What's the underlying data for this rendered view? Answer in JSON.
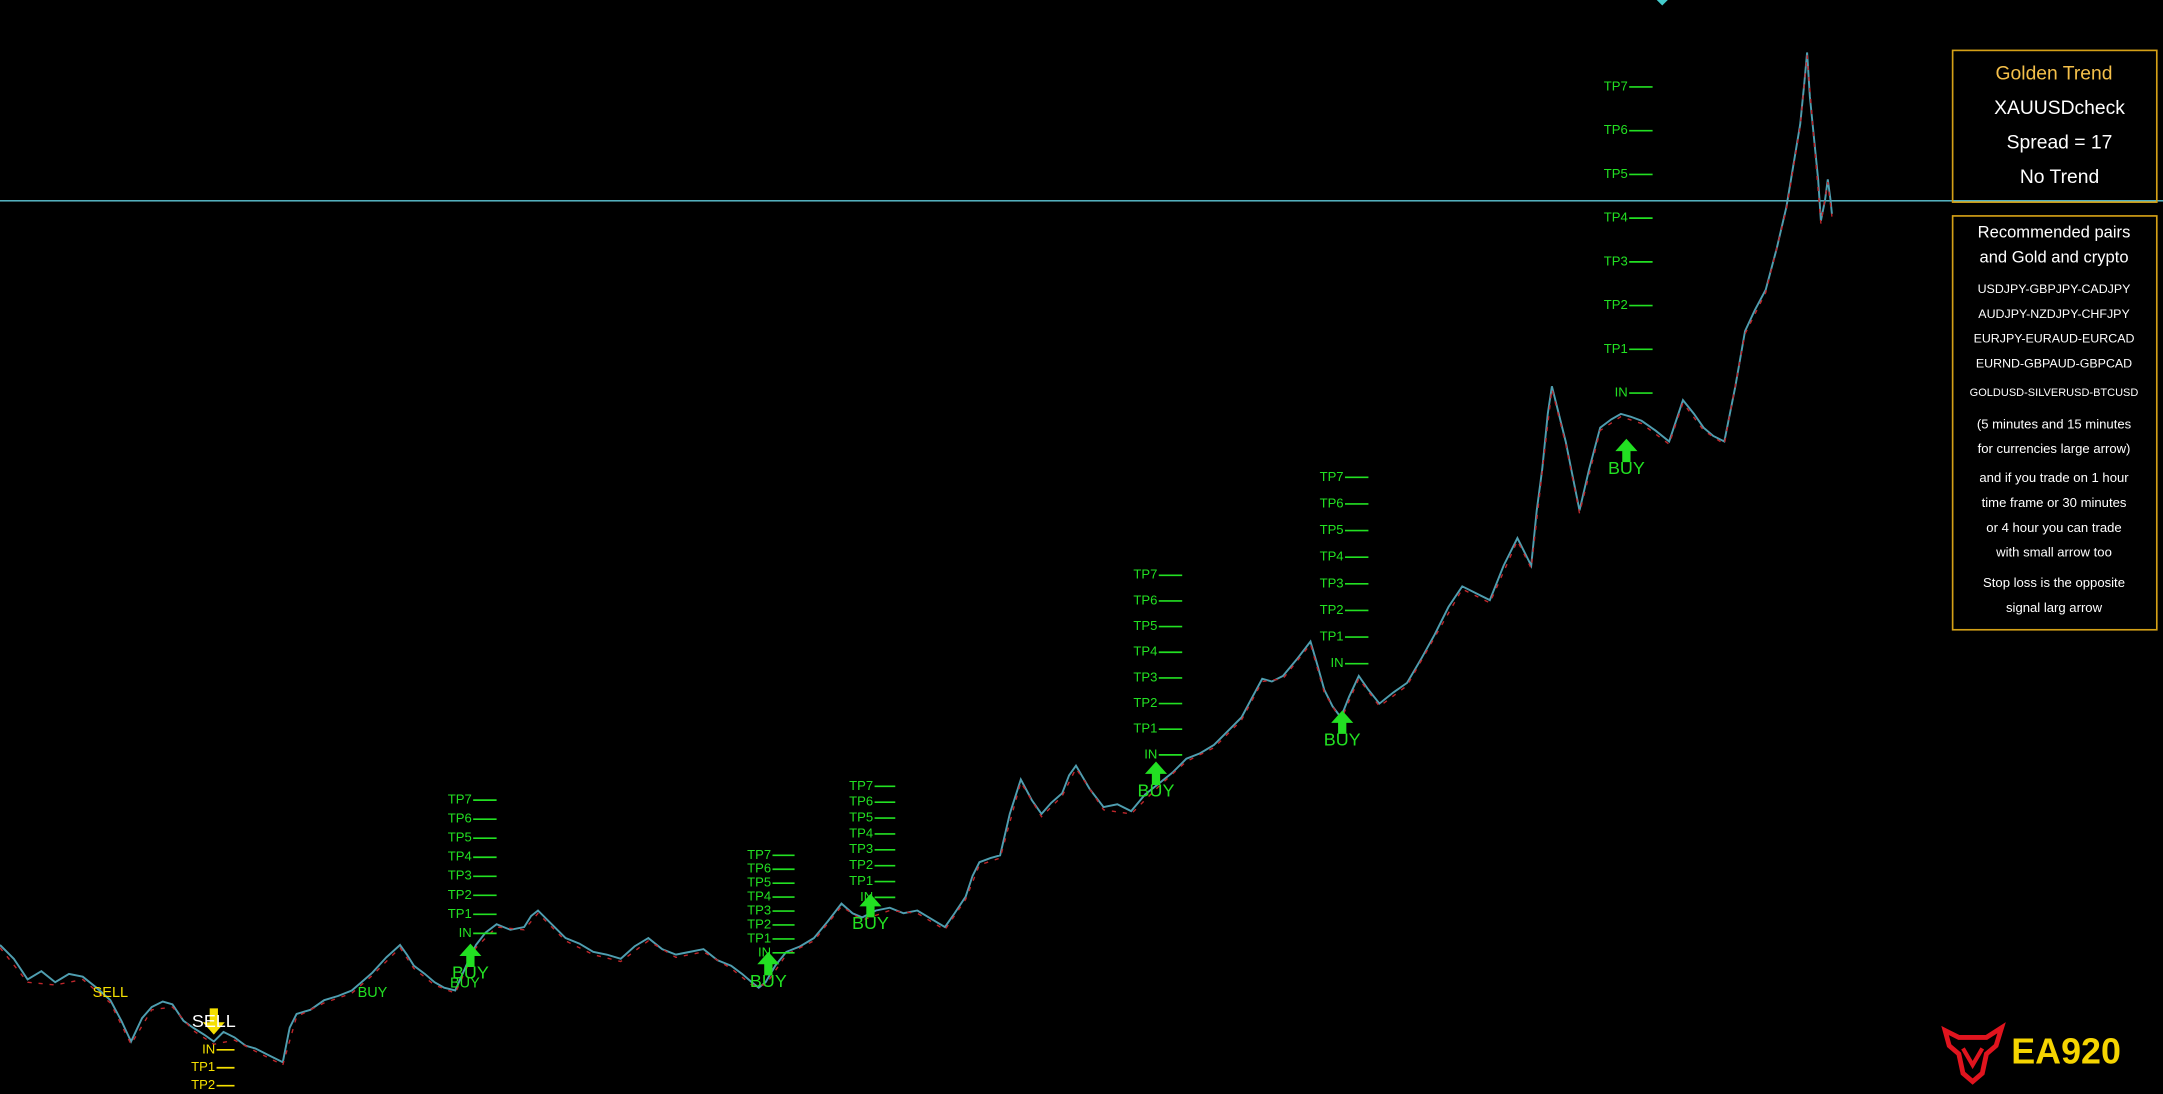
{
  "info_panel": {
    "title": "Golden Trend",
    "symbol": "XAUUSDcheck",
    "spread": "Spread = 17",
    "trend": "No Trend"
  },
  "recommend_panel": {
    "heading": [
      "Recommended pairs",
      "and Gold and crypto"
    ],
    "pairs": [
      "USDJPY-GBPJPY-CADJPY",
      "AUDJPY-NZDJPY-CHFJPY",
      "EURJPY-EURAUD-EURCAD",
      "EURND-GBPAUD-GBPCAD",
      "GOLDUSD-SILVERUSD-BTCUSD"
    ],
    "notes": [
      "(5 minutes and 15 minutes",
      "for currencies large arrow)",
      "and if you trade on 1 hour",
      "time frame or 30 minutes",
      "or 4 hour you can trade",
      "with small arrow too",
      "Stop loss is the opposite",
      "signal larg arrow"
    ]
  },
  "signals": [
    {
      "label": "SELL",
      "levels": [
        "IN",
        "TP1",
        "TP2"
      ]
    },
    {
      "label": "BUY",
      "levels": [
        "TP7",
        "TP6",
        "TP5",
        "TP4",
        "TP3",
        "TP2",
        "TP1",
        "IN"
      ]
    },
    {
      "label": "BUY",
      "levels": [
        "TP7",
        "TP6",
        "TP5",
        "TP4",
        "TP3",
        "TP2",
        "TP1",
        "IN"
      ]
    },
    {
      "label": "BUY",
      "levels": [
        "TP7",
        "TP6",
        "TP5",
        "TP4",
        "TP3",
        "TP2",
        "TP1",
        "IN"
      ]
    },
    {
      "label": "BUY",
      "levels": [
        "TP7",
        "TP6",
        "TP5",
        "TP4",
        "TP3",
        "TP2",
        "TP1",
        "IN"
      ]
    },
    {
      "label": "BUY",
      "levels": [
        "TP7",
        "TP6",
        "TP5",
        "TP4",
        "TP3",
        "TP2",
        "TP1",
        "IN"
      ]
    },
    {
      "label": "BUY",
      "levels": [
        "TP7",
        "TP6",
        "TP5",
        "TP4",
        "TP3",
        "TP2",
        "TP1",
        "IN"
      ]
    }
  ],
  "small_signals": [
    "SELL",
    "BUY",
    "BUY"
  ],
  "logo": "EA920"
}
